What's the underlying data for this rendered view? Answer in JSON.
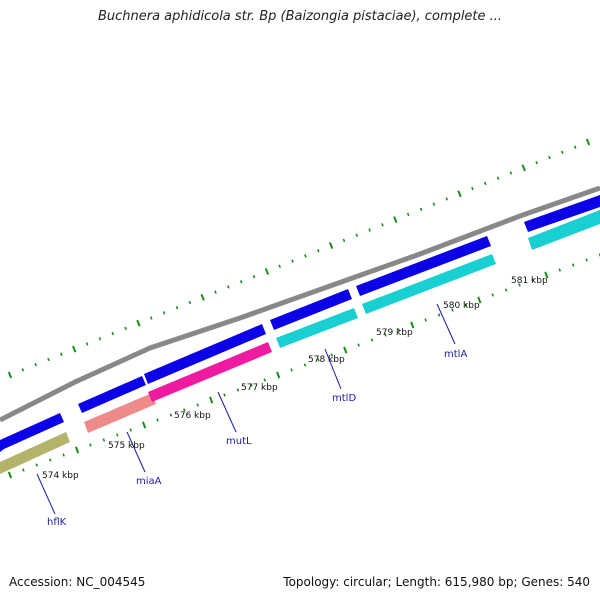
{
  "title": "Buchnera aphidicola str. Bp (Baizongia pistaciae), complete ...",
  "footer": {
    "accession": "Accession: NC_004545",
    "topology": "Topology: circular; Length: 615,980 bp; Genes: 540"
  },
  "colors": {
    "backbone": "#888888",
    "forward_gene": "#0b00e6",
    "reverse_gene": "#18cfd2",
    "tick": "#1a8c1a",
    "label": "#1a1aa8"
  },
  "ticks": [
    {
      "label": "574 kbp"
    },
    {
      "label": "575 kbp"
    },
    {
      "label": "576 kbp"
    },
    {
      "label": "577 kbp"
    },
    {
      "label": "578 kbp"
    },
    {
      "label": "579 kbp"
    },
    {
      "label": "580 kbp"
    },
    {
      "label": "581 kbp"
    }
  ],
  "genes": [
    {
      "name": "hflK",
      "color": "#b5b36a"
    },
    {
      "name": "miaA",
      "color": "#ee8a8a"
    },
    {
      "name": "mutL",
      "color": "#ee1aa0"
    },
    {
      "name": "mtlD",
      "color": "#18cfd2"
    },
    {
      "name": "mtlA",
      "color": "#18cfd2"
    }
  ]
}
